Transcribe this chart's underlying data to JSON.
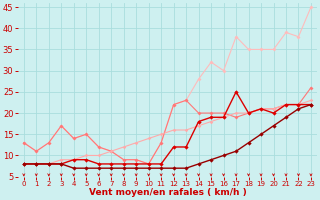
{
  "background_color": "#cef0f0",
  "grid_color": "#aadddd",
  "xlabel": "Vent moyen/en rafales ( km/h )",
  "xlabel_color": "#cc0000",
  "tick_color": "#cc0000",
  "xlim": [
    -0.5,
    23.5
  ],
  "ylim": [
    5,
    46
  ],
  "yticks": [
    5,
    10,
    15,
    20,
    25,
    30,
    35,
    40,
    45
  ],
  "xticks": [
    0,
    1,
    2,
    3,
    4,
    5,
    6,
    7,
    8,
    9,
    10,
    11,
    12,
    13,
    14,
    15,
    16,
    17,
    18,
    19,
    20,
    21,
    22,
    23
  ],
  "series": [
    {
      "x": [
        0,
        1,
        2,
        3,
        4,
        5,
        6,
        7,
        8,
        9,
        10,
        11,
        12,
        13,
        14,
        15,
        16,
        17,
        18,
        19,
        20,
        21,
        22,
        23
      ],
      "y": [
        13,
        11,
        13,
        17,
        14,
        15,
        12,
        11,
        9,
        9,
        8,
        13,
        22,
        23,
        28,
        32,
        30,
        38,
        35,
        35,
        35,
        39,
        38,
        45
      ],
      "color": "#ffbbbb",
      "lw": 0.8,
      "marker": "D",
      "ms": 2.0,
      "zorder": 2
    },
    {
      "x": [
        0,
        1,
        2,
        3,
        4,
        5,
        6,
        7,
        8,
        9,
        10,
        11,
        12,
        13,
        14,
        15,
        16,
        17,
        18,
        19,
        20,
        21,
        22,
        23
      ],
      "y": [
        13,
        11,
        13,
        17,
        14,
        15,
        12,
        11,
        9,
        9,
        8,
        13,
        22,
        23,
        20,
        20,
        20,
        19,
        20,
        21,
        21,
        22,
        22,
        26
      ],
      "color": "#ff7777",
      "lw": 0.8,
      "marker": "D",
      "ms": 2.0,
      "zorder": 3
    },
    {
      "x": [
        0,
        1,
        2,
        3,
        4,
        5,
        6,
        7,
        8,
        9,
        10,
        11,
        12,
        13,
        14,
        15,
        16,
        17,
        18,
        19,
        20,
        21,
        22,
        23
      ],
      "y": [
        8,
        8,
        8,
        9,
        9,
        10,
        10,
        11,
        12,
        13,
        14,
        15,
        16,
        16,
        17,
        18,
        19,
        20,
        20,
        21,
        21,
        22,
        22,
        23
      ],
      "color": "#ffaaaa",
      "lw": 0.8,
      "marker": "D",
      "ms": 1.8,
      "zorder": 3
    },
    {
      "x": [
        0,
        1,
        2,
        3,
        4,
        5,
        6,
        7,
        8,
        9,
        10,
        11,
        12,
        13,
        14,
        15,
        16,
        17,
        18,
        19,
        20,
        21,
        22,
        23
      ],
      "y": [
        8,
        8,
        8,
        8,
        9,
        9,
        8,
        8,
        8,
        8,
        8,
        8,
        12,
        12,
        18,
        19,
        19,
        25,
        20,
        21,
        20,
        22,
        22,
        22
      ],
      "color": "#dd0000",
      "lw": 1.0,
      "marker": "D",
      "ms": 2.2,
      "zorder": 5
    },
    {
      "x": [
        0,
        1,
        2,
        3,
        4,
        5,
        6,
        7,
        8,
        9,
        10,
        11,
        12,
        13,
        14,
        15,
        16,
        17,
        18,
        19,
        20,
        21,
        22,
        23
      ],
      "y": [
        8,
        8,
        8,
        8,
        7,
        7,
        7,
        7,
        7,
        7,
        7,
        7,
        7,
        7,
        8,
        9,
        10,
        11,
        13,
        15,
        17,
        19,
        21,
        22
      ],
      "color": "#990000",
      "lw": 1.0,
      "marker": "D",
      "ms": 2.2,
      "zorder": 5
    }
  ]
}
